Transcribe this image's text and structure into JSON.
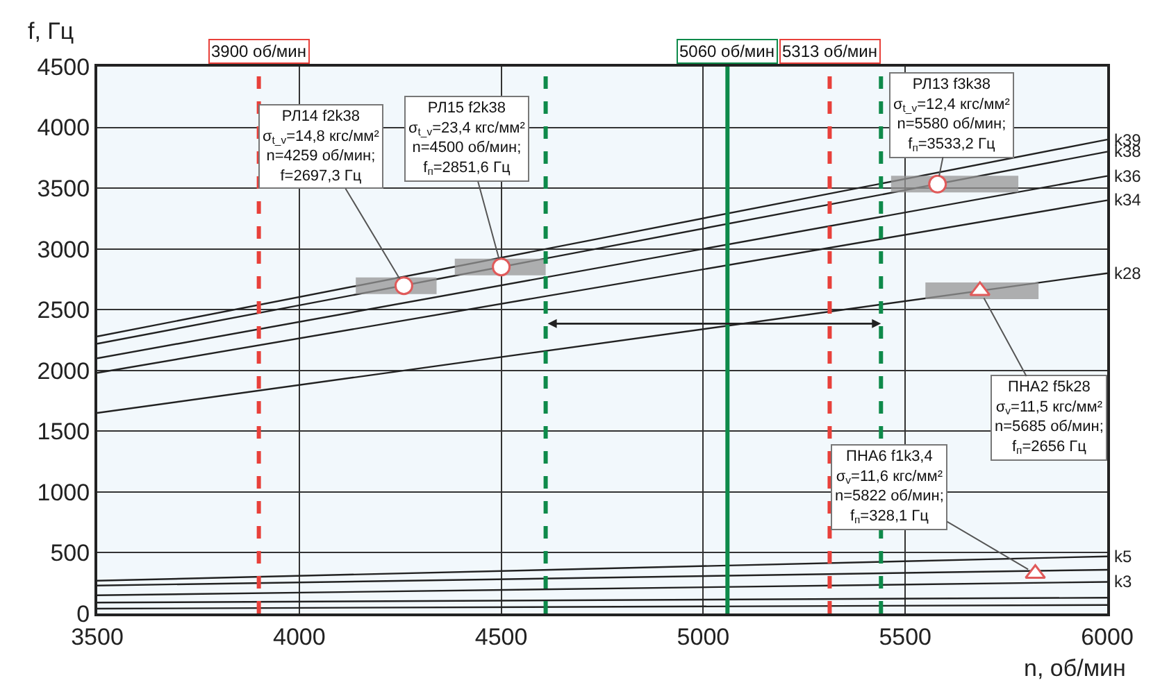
{
  "chart_data": {
    "type": "line",
    "xlabel": "n, об/мин",
    "ylabel": "f, Гц",
    "xlim": [
      3500,
      6000
    ],
    "xticks": [
      3500,
      4000,
      4500,
      5000,
      5500,
      6000
    ],
    "ylim": [
      0,
      4500
    ],
    "yticks": [
      0,
      500,
      1000,
      1500,
      2000,
      2500,
      3000,
      3500,
      4000,
      4500
    ],
    "grid": true,
    "legend": false,
    "marker": "none",
    "line_style": "solid",
    "series": [
      {
        "name": "k39",
        "color": "#222222",
        "x": [
          3500,
          6000
        ],
        "values": [
          2280,
          3900
        ]
      },
      {
        "name": "k38",
        "color": "#222222",
        "x": [
          3500,
          6000
        ],
        "values": [
          2220,
          3800
        ]
      },
      {
        "name": "k36",
        "color": "#222222",
        "x": [
          3500,
          6000
        ],
        "values": [
          2100,
          3600
        ]
      },
      {
        "name": "k34",
        "color": "#222222",
        "x": [
          3500,
          6000
        ],
        "values": [
          1980,
          3400
        ]
      },
      {
        "name": "k28",
        "color": "#222222",
        "x": [
          3500,
          6000
        ],
        "values": [
          1650,
          2800
        ]
      },
      {
        "name": "k5",
        "color": "#222222",
        "x": [
          3500,
          6000
        ],
        "values": [
          270,
          470
        ]
      },
      {
        "color": "#222222",
        "x": [
          3500,
          6000
        ],
        "values": [
          230,
          360
        ]
      },
      {
        "name": "k3",
        "color": "#222222",
        "x": [
          3500,
          6000
        ],
        "values": [
          150,
          260
        ]
      },
      {
        "color": "#222222",
        "x": [
          3500,
          6000
        ],
        "values": [
          90,
          130
        ]
      },
      {
        "color": "#222222",
        "x": [
          3500,
          6000
        ],
        "values": [
          40,
          70
        ]
      },
      {
        "type": "scatter",
        "marker": "circle",
        "color": "#e05a5a",
        "x": [
          4259
        ],
        "values": [
          2697.3
        ],
        "xerrors": [
          [
            4140,
            4340
          ]
        ]
      },
      {
        "type": "scatter",
        "marker": "circle",
        "color": "#e05a5a",
        "x": [
          4500
        ],
        "values": [
          2851.6
        ],
        "xerrors": [
          [
            4385,
            4610
          ]
        ]
      },
      {
        "type": "scatter",
        "marker": "circle",
        "color": "#e05a5a",
        "x": [
          5580
        ],
        "values": [
          3533.2
        ],
        "xerrors": [
          [
            5465,
            5780
          ]
        ]
      },
      {
        "type": "scatter",
        "marker": "triangle",
        "color": "#e05a5a",
        "x": [
          5685
        ],
        "values": [
          2656
        ],
        "xerrors": [
          [
            5550,
            5830
          ]
        ]
      },
      {
        "type": "scatter",
        "marker": "triangle",
        "color": "#e05a5a",
        "x": [
          5822
        ],
        "values": [
          328.1
        ]
      }
    ],
    "ref_lines": [
      {
        "axis": "x",
        "value": 3900,
        "label": "3900 об/мин",
        "color": "#e8403a",
        "line_style": "dashed"
      },
      {
        "axis": "x",
        "value": 5313,
        "label": "5313 об/мин",
        "color": "#e8403a",
        "line_style": "dashed"
      },
      {
        "axis": "x",
        "value": 5060,
        "label": "5060 об/мин",
        "color": "#0e8a4a",
        "line_style": "solid"
      },
      {
        "axis": "x",
        "value": 4610,
        "label": null,
        "color": "#0e8a4a",
        "line_style": "dashed"
      },
      {
        "axis": "x",
        "value": 5440,
        "label": null,
        "color": "#0e8a4a",
        "line_style": "dashed"
      }
    ],
    "annotations": [
      {
        "text": "РЛ14 f2k38\nσ$_{t_v}$=14,8 кгс/мм²\nn=4259 об/мин;\nf=2697,3 Гц",
        "x": 4259,
        "y": 2697.3
      },
      {
        "text": "РЛ15 f2k38\nσ$_{t_v}$=23,4 кгс/мм²\nn=4500 об/мин;\nf$_{п}$=2851,6 Гц",
        "x": 4500,
        "y": 2851.6
      },
      {
        "text": "РЛ13 f3k38\nσ$_{t_v}$=12,4 кгс/мм²\nn=5580 об/мин;\nf$_{п}$=3533,2 Гц",
        "x": 5580,
        "y": 3533.2
      },
      {
        "text": "ПНА2 f5k28\nσ$_{v}$=11,5 кгс/мм²\nn=5685 об/мин;\nf$_{п}$=2656 Гц",
        "x": 5685,
        "y": 2656
      },
      {
        "text": "ПНА6 f1k3,4\nσ$_{v}$=11,6 кгс/мм²\nn=5822 об/мин;\nf$_{п}$=328,1 Гц",
        "x": 5822,
        "y": 328.1
      }
    ]
  }
}
